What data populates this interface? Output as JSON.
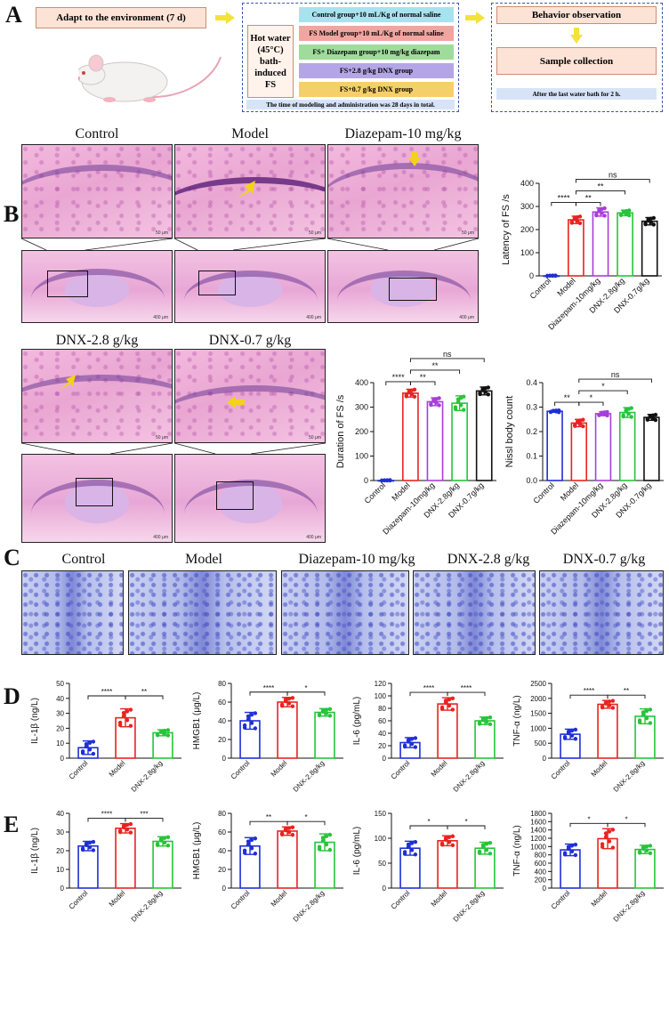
{
  "panel_labels": {
    "a": "A",
    "b": "B",
    "c": "C",
    "d": "D",
    "e": "E"
  },
  "panelA": {
    "adapt": "Adapt to the environment (7 d)",
    "hot_water": [
      "Hot water",
      "(45°C)",
      "bath-",
      "induced FS"
    ],
    "groups": [
      {
        "label": "Control group+10 mL/Kg of normal saline",
        "color": "#a7e3ef"
      },
      {
        "label": "FS Model group+10 mL/Kg of normal saline",
        "color": "#f2a5a0"
      },
      {
        "label": "FS+ Diazepam group+10 mg/kg diazepam",
        "color": "#9fdc9c"
      },
      {
        "label": "FS+2.8 g/kg DNX group",
        "color": "#b4a6e6"
      },
      {
        "label": "FS+0.7 g/kg DNX group",
        "color": "#f7cf6a"
      }
    ],
    "note": "The time of modeling and administration was 28 days in total.",
    "behavior": "Behavior observation",
    "sample": "Sample collection",
    "after": "After the last water bath for 2 h."
  },
  "panelB": {
    "titles": [
      "Control",
      "Model",
      "Diazepam-10 mg/kg",
      "DNX-2.8 g/kg",
      "DNX-0.7 g/kg"
    ],
    "scale_high": "50 μm",
    "scale_low": "400 μm"
  },
  "panelC": {
    "titles": [
      "Control",
      "Model",
      "Diazepam-10 mg/kg",
      "DNX-2.8 g/kg",
      "DNX-0.7 g/kg"
    ]
  },
  "chart_data": [
    {
      "id": "latency",
      "type": "bar",
      "ylabel": "Latency of FS /s",
      "ylim": [
        0,
        400
      ],
      "yticks": [
        0,
        100,
        200,
        300,
        400
      ],
      "categories": [
        "Control",
        "Model",
        "Diazepam-10mg/kg",
        "DNX-2.8g/kg",
        "DNX-0.7g/kg"
      ],
      "colors": [
        "#1f2fd6",
        "#e8231f",
        "#a63fd8",
        "#27c43a",
        "#111111"
      ],
      "values": [
        0,
        242,
        276,
        272,
        236
      ],
      "errors": [
        0,
        16,
        18,
        12,
        16
      ],
      "sig": [
        {
          "a": 0,
          "b": 1,
          "text": "****",
          "level": 0
        },
        {
          "a": 1,
          "b": 2,
          "text": "**",
          "level": 0
        },
        {
          "a": 1,
          "b": 3,
          "text": "**",
          "level": 1
        },
        {
          "a": 1,
          "b": 4,
          "text": "ns",
          "level": 2
        }
      ]
    },
    {
      "id": "duration",
      "type": "bar",
      "ylabel": "Duration of FS /s",
      "ylim": [
        0,
        400
      ],
      "yticks": [
        0,
        100,
        200,
        300,
        400
      ],
      "categories": [
        "Control",
        "Model",
        "Diazepam-10mg/kg",
        "DNX-2.8g/kg",
        "DNX-0.7g/kg"
      ],
      "colors": [
        "#1f2fd6",
        "#e8231f",
        "#a63fd8",
        "#27c43a",
        "#111111"
      ],
      "values": [
        0,
        357,
        322,
        316,
        366
      ],
      "errors": [
        0,
        16,
        16,
        30,
        16
      ],
      "sig": [
        {
          "a": 0,
          "b": 1,
          "text": "****",
          "level": 0
        },
        {
          "a": 1,
          "b": 2,
          "text": "**",
          "level": 0
        },
        {
          "a": 1,
          "b": 3,
          "text": "**",
          "level": 1
        },
        {
          "a": 1,
          "b": 4,
          "text": "ns",
          "level": 2
        }
      ]
    },
    {
      "id": "nissl",
      "type": "bar",
      "ylabel": "Nissl body count",
      "ylim": [
        0,
        0.4
      ],
      "yticks": [
        0.0,
        0.1,
        0.2,
        0.3,
        0.4
      ],
      "categories": [
        "Control",
        "Model",
        "Diazepam-10mg/kg",
        "DNX-2.8g/kg",
        "DNX-0.7g/kg"
      ],
      "colors": [
        "#1f2fd6",
        "#e8231f",
        "#a63fd8",
        "#27c43a",
        "#111111"
      ],
      "values": [
        0.283,
        0.235,
        0.273,
        0.278,
        0.258
      ],
      "errors": [
        0.004,
        0.015,
        0.008,
        0.02,
        0.012
      ],
      "sig": [
        {
          "a": 0,
          "b": 1,
          "text": "**",
          "level": 0
        },
        {
          "a": 1,
          "b": 2,
          "text": "*",
          "level": 0
        },
        {
          "a": 1,
          "b": 3,
          "text": "*",
          "level": 1
        },
        {
          "a": 1,
          "b": 4,
          "text": "ns",
          "level": 2
        }
      ]
    },
    {
      "id": "d_il1b",
      "type": "bar",
      "ylabel": "IL-1β (ng/L)",
      "ylim": [
        0,
        50
      ],
      "yticks": [
        0,
        10,
        20,
        30,
        40,
        50
      ],
      "categories": [
        "Control",
        "Model",
        "DNX-2.8g/kg"
      ],
      "colors": [
        "#1f2fd6",
        "#e8231f",
        "#27c43a"
      ],
      "values": [
        7,
        27,
        17
      ],
      "errors": [
        4.5,
        6,
        2
      ],
      "sig": [
        {
          "a": 0,
          "b": 1,
          "text": "****",
          "level": 0
        },
        {
          "a": 1,
          "b": 2,
          "text": "**",
          "level": 0
        }
      ]
    },
    {
      "id": "d_hmgb1",
      "type": "bar",
      "ylabel": "HMGB1 (μg/L)",
      "ylim": [
        0,
        80
      ],
      "yticks": [
        0,
        20,
        40,
        60,
        80
      ],
      "categories": [
        "Control",
        "Model",
        "DNX-2.8g/kg"
      ],
      "colors": [
        "#1f2fd6",
        "#e8231f",
        "#27c43a"
      ],
      "values": [
        40,
        60,
        49
      ],
      "errors": [
        9,
        5,
        4
      ],
      "sig": [
        {
          "a": 0,
          "b": 1,
          "text": "****",
          "level": 0
        },
        {
          "a": 1,
          "b": 2,
          "text": "*",
          "level": 0
        }
      ]
    },
    {
      "id": "d_il6",
      "type": "bar",
      "ylabel": "IL-6 (pg/mL)",
      "ylim": [
        0,
        120
      ],
      "yticks": [
        0,
        20,
        40,
        60,
        80,
        100,
        120
      ],
      "categories": [
        "Control",
        "Model",
        "DNX-2.8g/kg"
      ],
      "colors": [
        "#1f2fd6",
        "#e8231f",
        "#27c43a"
      ],
      "values": [
        25,
        87,
        60
      ],
      "errors": [
        8,
        10,
        6
      ],
      "sig": [
        {
          "a": 0,
          "b": 1,
          "text": "****",
          "level": 0
        },
        {
          "a": 1,
          "b": 2,
          "text": "****",
          "level": 0
        }
      ]
    },
    {
      "id": "d_tnf",
      "type": "bar",
      "ylabel": "TNF-α (ng/L)",
      "ylim": [
        0,
        2500
      ],
      "yticks": [
        0,
        500,
        1000,
        1500,
        2000,
        2500
      ],
      "categories": [
        "Control",
        "Model",
        "DNX-2.8g/kg"
      ],
      "colors": [
        "#1f2fd6",
        "#e8231f",
        "#27c43a"
      ],
      "values": [
        800,
        1800,
        1400
      ],
      "errors": [
        170,
        130,
        250
      ],
      "sig": [
        {
          "a": 0,
          "b": 1,
          "text": "****",
          "level": 0
        },
        {
          "a": 1,
          "b": 2,
          "text": "**",
          "level": 0
        }
      ]
    },
    {
      "id": "e_il1b",
      "type": "bar",
      "ylabel": "IL-1β (ng/L)",
      "ylim": [
        0,
        40
      ],
      "yticks": [
        0,
        10,
        20,
        30,
        40
      ],
      "categories": [
        "Control",
        "Model",
        "DNX-2.8g/kg"
      ],
      "colors": [
        "#1f2fd6",
        "#e8231f",
        "#27c43a"
      ],
      "values": [
        22.5,
        32,
        25
      ],
      "errors": [
        2.5,
        2.5,
        2.5
      ],
      "sig": [
        {
          "a": 0,
          "b": 1,
          "text": "****",
          "level": 0
        },
        {
          "a": 1,
          "b": 2,
          "text": "***",
          "level": 0
        }
      ]
    },
    {
      "id": "e_hmgb1",
      "type": "bar",
      "ylabel": "HMGB1 (μg/L)",
      "ylim": [
        0,
        80
      ],
      "yticks": [
        0,
        20,
        40,
        60,
        80
      ],
      "categories": [
        "Control",
        "Model",
        "DNX-2.8g/kg"
      ],
      "colors": [
        "#1f2fd6",
        "#e8231f",
        "#27c43a"
      ],
      "values": [
        45,
        61,
        49
      ],
      "errors": [
        9,
        4.5,
        9
      ],
      "sig": [
        {
          "a": 0,
          "b": 1,
          "text": "**",
          "level": 0
        },
        {
          "a": 1,
          "b": 2,
          "text": "*",
          "level": 0
        }
      ]
    },
    {
      "id": "e_il6",
      "type": "bar",
      "ylabel": "IL-6 (pg/mL)",
      "ylim": [
        0,
        150
      ],
      "yticks": [
        0,
        50,
        100,
        150
      ],
      "categories": [
        "Control",
        "Model",
        "DNX-2.8g/kg"
      ],
      "colors": [
        "#1f2fd6",
        "#e8231f",
        "#27c43a"
      ],
      "values": [
        80,
        95,
        80
      ],
      "errors": [
        14,
        10,
        12
      ],
      "sig": [
        {
          "a": 0,
          "b": 1,
          "text": "*",
          "level": 0
        },
        {
          "a": 1,
          "b": 2,
          "text": "*",
          "level": 0
        }
      ]
    },
    {
      "id": "e_tnf",
      "type": "bar",
      "ylabel": "TNF-α (ng/L)",
      "ylim": [
        0,
        1800
      ],
      "yticks": [
        0,
        200,
        400,
        600,
        800,
        1000,
        1200,
        1400,
        1600,
        1800
      ],
      "categories": [
        "Control",
        "Model",
        "DNX-2.8g/kg"
      ],
      "colors": [
        "#1f2fd6",
        "#e8231f",
        "#27c43a"
      ],
      "values": [
        920,
        1190,
        930
      ],
      "errors": [
        140,
        240,
        100
      ],
      "sig": [
        {
          "a": 0,
          "b": 1,
          "text": "*",
          "level": 0
        },
        {
          "a": 1,
          "b": 2,
          "text": "*",
          "level": 0
        }
      ]
    }
  ]
}
